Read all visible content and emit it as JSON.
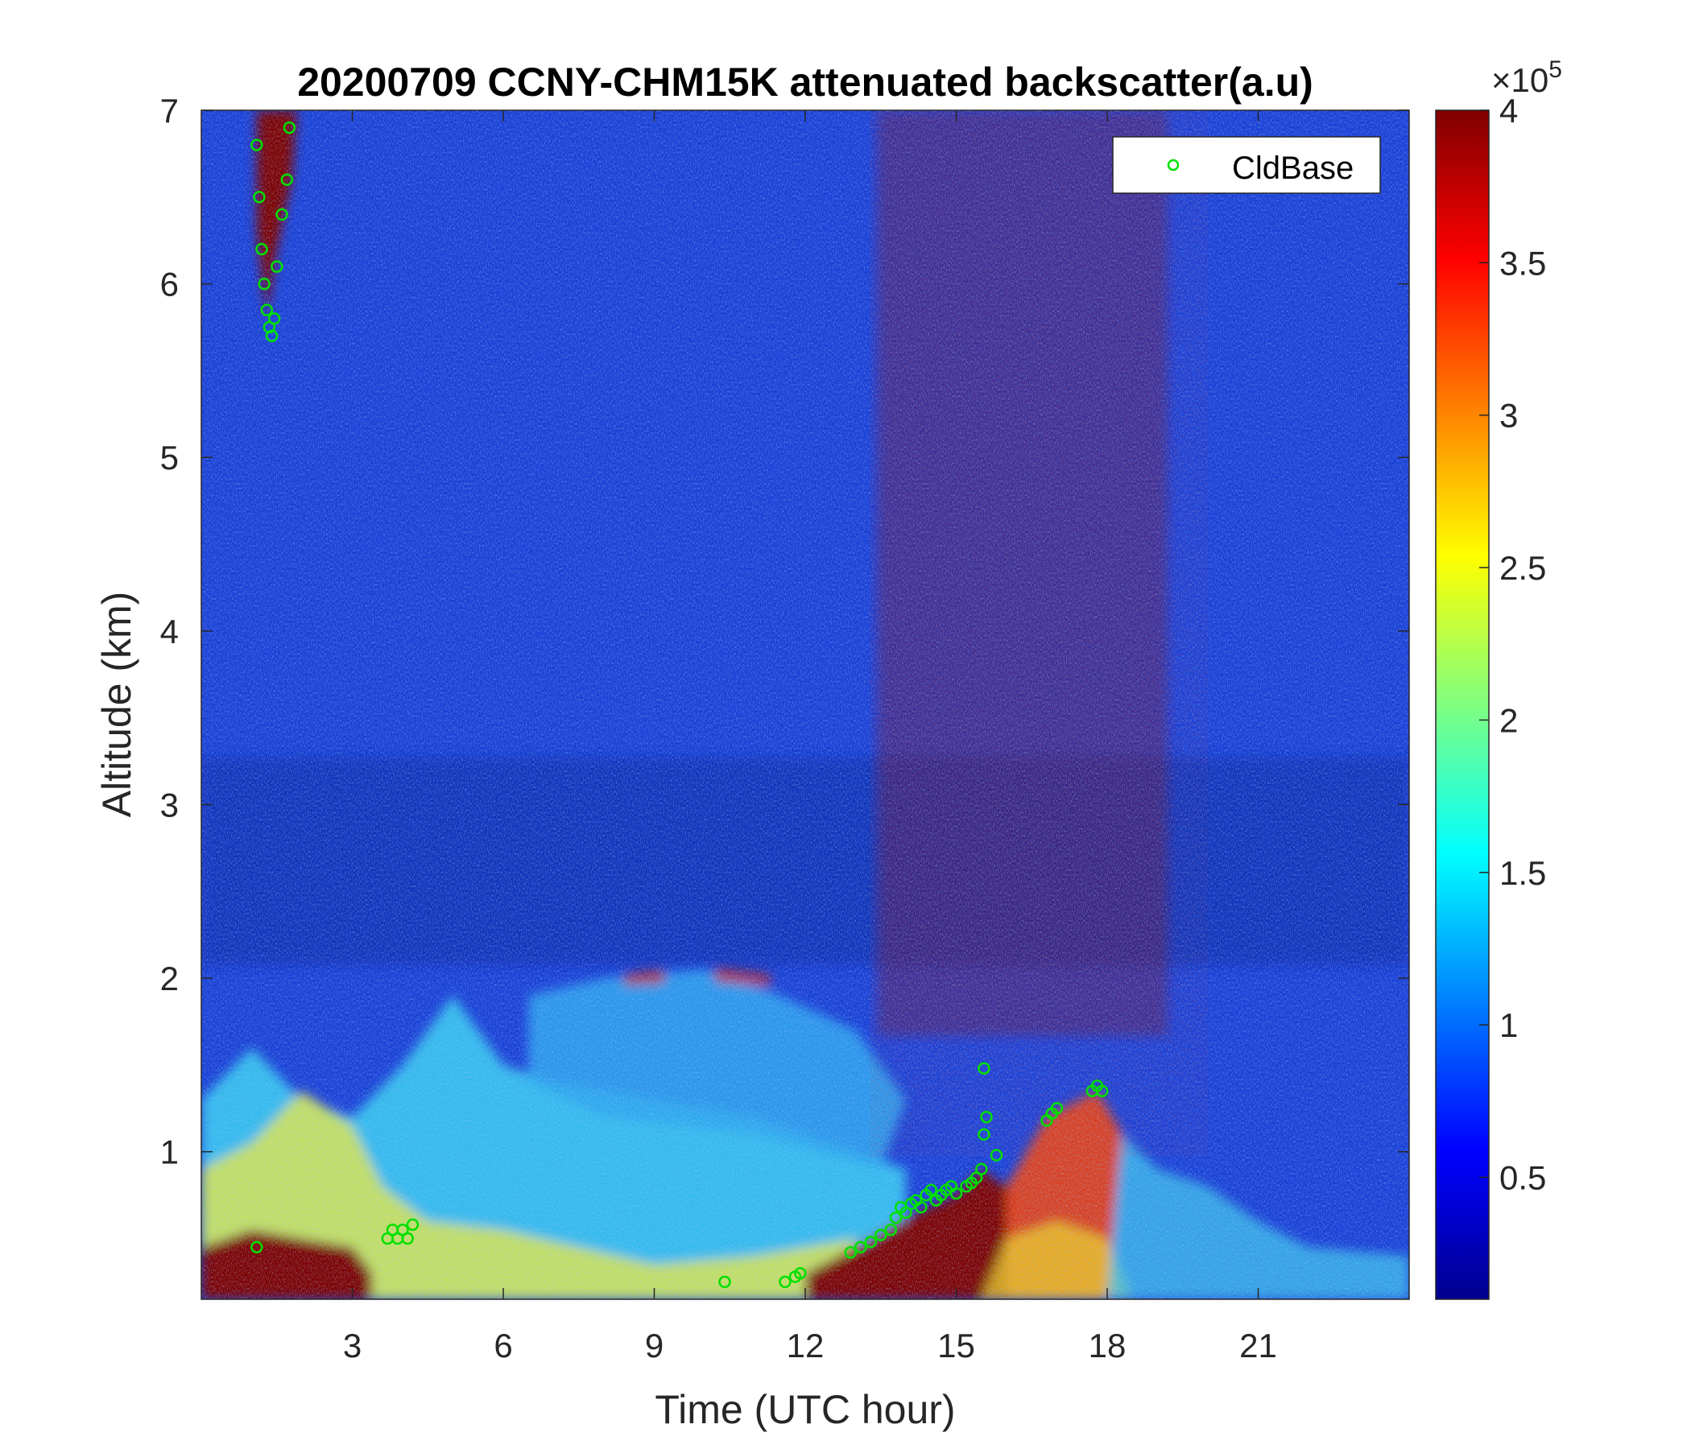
{
  "chart_data": {
    "type": "heatmap",
    "title": "20200709 CCNY-CHM15K attenuated backscatter(a.u)",
    "xlabel": "Time (UTC hour)",
    "ylabel": "Altitude (km)",
    "xlim": [
      0,
      24
    ],
    "ylim": [
      0.15,
      7
    ],
    "xticks": [
      3,
      6,
      9,
      12,
      15,
      18,
      21
    ],
    "xtick_labels": [
      "3",
      "6",
      "9",
      "12",
      "15",
      "18",
      "21"
    ],
    "yticks": [
      1,
      2,
      3,
      4,
      5,
      6,
      7
    ],
    "ytick_labels": [
      "1",
      "2",
      "3",
      "4",
      "5",
      "6",
      "7"
    ],
    "colorbar": {
      "colormap": "jet",
      "range": [
        0.1,
        4
      ],
      "ticks": [
        0.5,
        1,
        1.5,
        2,
        2.5,
        3,
        3.5,
        4
      ],
      "tick_labels": [
        "0.5",
        "1",
        "1.5",
        "2",
        "2.5",
        "3",
        "3.5",
        "4"
      ],
      "multiplier_base": "×10",
      "multiplier_exponent": "5"
    },
    "legend": {
      "placement": "top-right",
      "entries": [
        "CldBase"
      ]
    },
    "series": [
      {
        "name": "CldBase",
        "marker": "open-circle",
        "color": "#00e000",
        "points": [
          [
            1.1,
            0.45
          ],
          [
            1.1,
            6.8
          ],
          [
            1.15,
            6.5
          ],
          [
            1.2,
            6.2
          ],
          [
            1.25,
            6.0
          ],
          [
            1.3,
            5.85
          ],
          [
            1.35,
            5.75
          ],
          [
            1.4,
            5.7
          ],
          [
            1.45,
            5.8
          ],
          [
            1.5,
            6.1
          ],
          [
            1.6,
            6.4
          ],
          [
            1.7,
            6.6
          ],
          [
            1.75,
            6.9
          ],
          [
            3.7,
            0.5
          ],
          [
            3.8,
            0.55
          ],
          [
            3.9,
            0.5
          ],
          [
            4.0,
            0.55
          ],
          [
            4.1,
            0.5
          ],
          [
            4.2,
            0.58
          ],
          [
            10.4,
            0.25
          ],
          [
            11.6,
            0.25
          ],
          [
            11.8,
            0.28
          ],
          [
            11.9,
            0.3
          ],
          [
            12.9,
            0.42
          ],
          [
            13.1,
            0.45
          ],
          [
            13.3,
            0.48
          ],
          [
            13.5,
            0.52
          ],
          [
            13.7,
            0.55
          ],
          [
            13.8,
            0.62
          ],
          [
            13.9,
            0.68
          ],
          [
            14.0,
            0.65
          ],
          [
            14.1,
            0.7
          ],
          [
            14.2,
            0.72
          ],
          [
            14.3,
            0.68
          ],
          [
            14.4,
            0.75
          ],
          [
            14.5,
            0.78
          ],
          [
            14.6,
            0.72
          ],
          [
            14.7,
            0.75
          ],
          [
            14.8,
            0.78
          ],
          [
            14.9,
            0.8
          ],
          [
            15.0,
            0.76
          ],
          [
            15.2,
            0.8
          ],
          [
            15.3,
            0.82
          ],
          [
            15.4,
            0.85
          ],
          [
            15.5,
            0.9
          ],
          [
            15.55,
            1.1
          ],
          [
            15.6,
            1.2
          ],
          [
            15.55,
            1.48
          ],
          [
            15.8,
            0.98
          ],
          [
            16.8,
            1.18
          ],
          [
            16.9,
            1.22
          ],
          [
            17.0,
            1.25
          ],
          [
            17.7,
            1.35
          ],
          [
            17.8,
            1.38
          ],
          [
            17.9,
            1.35
          ]
        ]
      }
    ]
  }
}
